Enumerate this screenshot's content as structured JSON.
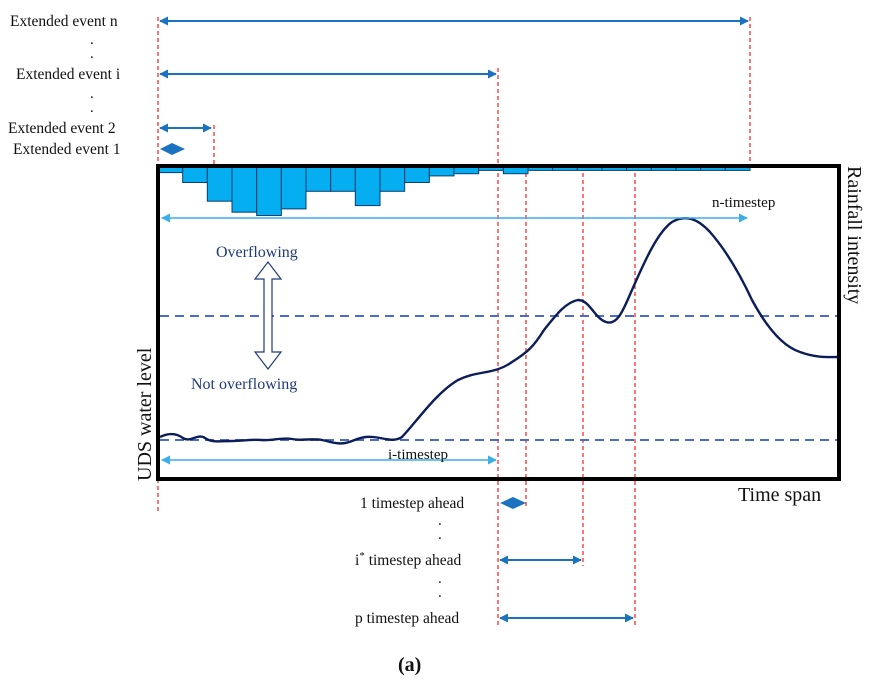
{
  "extended_events": {
    "event_n": "Extended event n",
    "event_i": "Extended event i",
    "event_2": "Extended event 2",
    "event_1": "Extended event 1",
    "dot": "."
  },
  "axes": {
    "left_label": "UDS water level",
    "right_label": "Rainfall intensity",
    "bottom_label": "Time span"
  },
  "annotations": {
    "overflowing": "Overflowing",
    "not_overflowing": "Not overflowing",
    "n_timestep": "n-timestep",
    "i_timestep": "i-timestep"
  },
  "horizons": {
    "one_ahead": "1 timestep ahead",
    "i_star_base": "i",
    "i_star_sup": "*",
    "i_star_rest": " timestep ahead",
    "p_ahead": "p timestep ahead"
  },
  "caption": "(a)",
  "rainfall_hyetograph_depths": [
    0.3,
    0.75,
    1.6,
    2.1,
    2.25,
    1.95,
    1.15,
    1.15,
    1.8,
    1.15,
    0.75,
    0.45,
    0.35,
    0.2,
    0.35,
    0.2,
    0.2,
    0.2,
    0.2,
    0.2,
    0.2,
    0.2,
    0.2,
    0.2
  ],
  "colors": {
    "arrow": "#1b72c0",
    "light_arrow": "#3aaeea",
    "bar_fill": "#05aef0",
    "curve": "#0c1e5a",
    "threshold": "#4a6cc6",
    "guide": "#ff1a1a",
    "frame": "#000000"
  }
}
